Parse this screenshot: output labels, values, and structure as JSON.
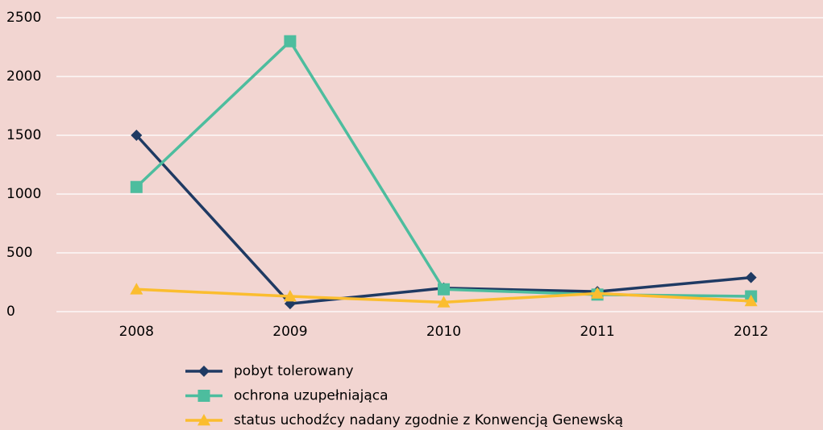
{
  "chart_data": {
    "type": "line",
    "categories": [
      "2008",
      "2009",
      "2010",
      "2011",
      "2012"
    ],
    "series": [
      {
        "name": "pobyt tolerowany",
        "color": "#1f3a63",
        "marker": "diamond",
        "values": [
          1500,
          68,
          200,
          170,
          290
        ]
      },
      {
        "name": "ochrona uzupełniająca",
        "color": "#4dbd9e",
        "marker": "square",
        "values": [
          1060,
          2300,
          190,
          145,
          130
        ]
      },
      {
        "name": "status uchodźcy nadany  zgodnie z Konwencją Genewską",
        "color": "#fbbd2f",
        "marker": "triangle",
        "values": [
          190,
          130,
          80,
          155,
          90
        ]
      }
    ],
    "ylim": [
      0,
      2500
    ],
    "yticks": [
      0,
      500,
      1000,
      1500,
      2000,
      2500
    ],
    "grid": true,
    "legend": "bottom"
  }
}
